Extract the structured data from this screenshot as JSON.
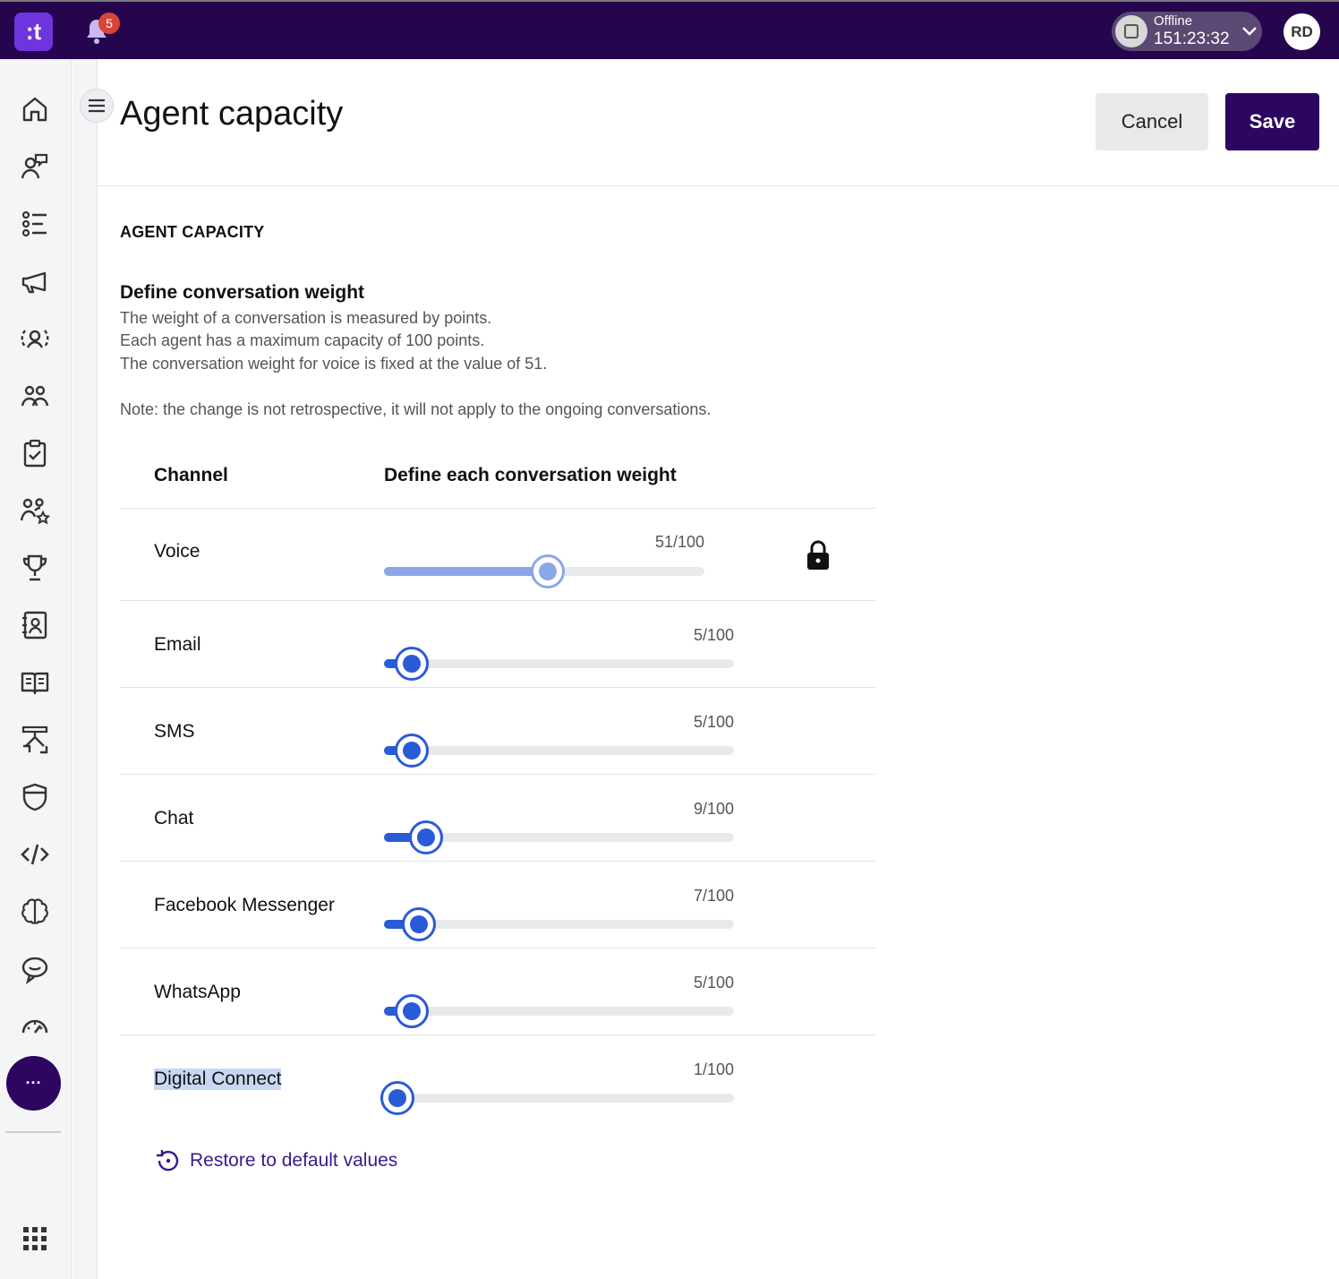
{
  "topbar": {
    "logo_text": ":t",
    "notifications_count": "5",
    "status_label": "Offline",
    "status_timer": "151:23:32",
    "avatar_initials": "RD"
  },
  "sidebar": {
    "items": [
      "home-icon",
      "conversations-icon",
      "queue-list-icon",
      "campaigns-icon",
      "agent-icon",
      "teams-icon",
      "tasks-icon",
      "skills-icon",
      "trophy-icon",
      "contacts-icon",
      "knowledge-base-icon",
      "workflow-icon",
      "shield-icon",
      "code-icon",
      "ai-brain-icon",
      "chat-bot-icon",
      "dashboard-gauge-icon"
    ],
    "more_label": "···"
  },
  "header": {
    "title": "Agent capacity",
    "cancel_label": "Cancel",
    "save_label": "Save"
  },
  "content": {
    "section_title": "AGENT CAPACITY",
    "subtitle": "Define conversation weight",
    "desc_lines": [
      "The weight of a conversation is measured by points.",
      "Each agent has a maximum capacity of 100 points.",
      "The conversation weight for voice is fixed at the value of 51."
    ],
    "note": "Note: the change is not retrospective, it will not apply to the ongoing conversations.",
    "col_channel": "Channel",
    "col_weight": "Define each conversation weight",
    "channels": [
      {
        "name": "Voice",
        "value_label": "51/100",
        "value": 51,
        "locked": true
      },
      {
        "name": "Email",
        "value_label": "5/100",
        "value": 5,
        "locked": false
      },
      {
        "name": "SMS",
        "value_label": "5/100",
        "value": 5,
        "locked": false
      },
      {
        "name": "Chat",
        "value_label": "9/100",
        "value": 9,
        "locked": false
      },
      {
        "name": "Facebook Messenger",
        "value_label": "7/100",
        "value": 7,
        "locked": false
      },
      {
        "name": "WhatsApp",
        "value_label": "5/100",
        "value": 5,
        "locked": false
      },
      {
        "name": "Digital Connect",
        "value_label": "1/100",
        "value": 1,
        "locked": false
      }
    ],
    "restore_label": "Restore to default values"
  },
  "colors": {
    "topbar": "#26054f",
    "primary": "#2c0660",
    "slider": "#2a5bd7",
    "slider_disabled": "#8ba7e8"
  }
}
